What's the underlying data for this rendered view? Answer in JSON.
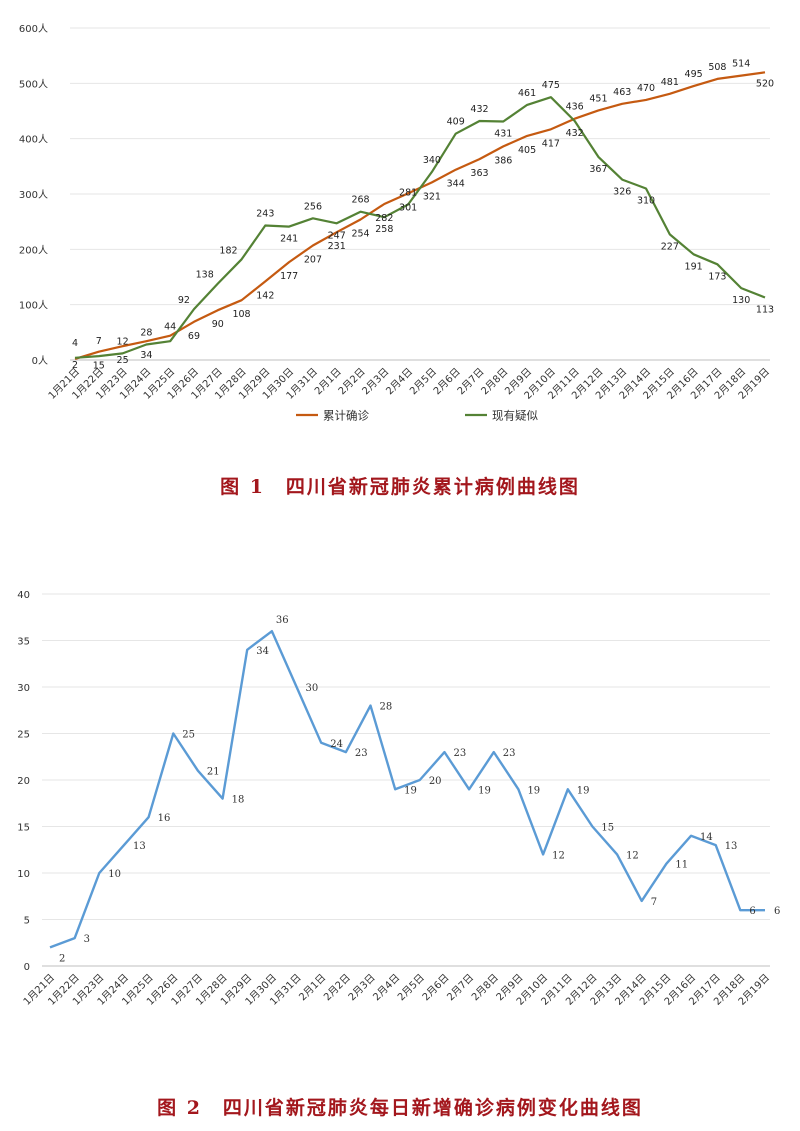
{
  "captions": {
    "fig1": "图 1　四川省新冠肺炎累计病例曲线图",
    "fig2": "图 2　四川省新冠肺炎每日新增确诊病例变化曲线图"
  },
  "chart_data": [
    {
      "type": "line",
      "categories": [
        "1月21日",
        "1月22日",
        "1月23日",
        "1月24日",
        "1月25日",
        "1月26日",
        "1月27日",
        "1月28日",
        "1月29日",
        "1月30日",
        "1月31日",
        "2月1日",
        "2月2日",
        "2月3日",
        "2月4日",
        "2月5日",
        "2月6日",
        "2月7日",
        "2月8日",
        "2月9日",
        "2月10日",
        "2月11日",
        "2月12日",
        "2月13日",
        "2月14日",
        "2月15日",
        "2月16日",
        "2月17日",
        "2月18日",
        "2月19日"
      ],
      "y_ticks": [
        "0人",
        "100人",
        "200人",
        "300人",
        "400人",
        "500人",
        "600人"
      ],
      "ylim": [
        0,
        600
      ],
      "grid": true,
      "legend_position": "bottom",
      "series": [
        {
          "name": "累计确诊",
          "color": "#c55a11",
          "values": [
            2,
            15,
            25,
            34,
            44,
            69,
            90,
            108,
            142,
            177,
            207,
            231,
            254,
            282,
            301,
            321,
            344,
            363,
            386,
            405,
            417,
            436,
            451,
            463,
            470,
            481,
            495,
            508,
            514,
            520
          ],
          "labels": [
            "2",
            "15",
            "25",
            "34",
            "44",
            "69",
            "90",
            "108",
            "142",
            "177",
            "207",
            "231",
            "254",
            "282",
            "301",
            "321",
            "344",
            "363",
            "386",
            "405",
            "417",
            "436",
            "451",
            "463",
            "470",
            "481",
            "495",
            "508",
            "514",
            "520"
          ]
        },
        {
          "name": "现有疑似",
          "color": "#548235",
          "values": [
            4,
            7,
            12,
            28,
            34,
            92,
            138,
            182,
            243,
            241,
            256,
            247,
            268,
            258,
            281,
            340,
            409,
            432,
            431,
            461,
            475,
            432,
            367,
            326,
            310,
            227,
            191,
            173,
            130,
            113
          ],
          "labels": [
            "4",
            "7",
            "12",
            "28",
            "",
            "92",
            "138",
            "182",
            "243",
            "241",
            "256",
            "247",
            "268",
            "258",
            "281",
            "340",
            "409",
            "432",
            "431",
            "461",
            "475",
            "432",
            "367",
            "326",
            "310",
            "227",
            "191",
            "173",
            "130",
            "113"
          ]
        }
      ]
    },
    {
      "type": "line",
      "categories": [
        "1月21日",
        "1月22日",
        "1月23日",
        "1月24日",
        "1月25日",
        "1月26日",
        "1月27日",
        "1月28日",
        "1月29日",
        "1月30日",
        "1月31日",
        "2月1日",
        "2月2日",
        "2月3日",
        "2月4日",
        "2月5日",
        "2月6日",
        "2月7日",
        "2月8日",
        "2月9日",
        "2月10日",
        "2月11日",
        "2月12日",
        "2月13日",
        "2月14日",
        "2月15日",
        "2月16日",
        "2月17日",
        "2月18日",
        "2月19日"
      ],
      "y_ticks": [
        "0",
        "5",
        "10",
        "15",
        "20",
        "25",
        "30",
        "35",
        "40"
      ],
      "ylim": [
        0,
        40
      ],
      "grid": true,
      "series": [
        {
          "color": "#5b9bd5",
          "values": [
            2,
            3,
            10,
            13,
            16,
            25,
            21,
            18,
            34,
            36,
            30,
            24,
            23,
            28,
            19,
            20,
            23,
            19,
            23,
            19,
            12,
            19,
            15,
            12,
            7,
            11,
            14,
            13,
            6,
            6
          ],
          "labels": [
            "2",
            "3",
            "10",
            "13",
            "16",
            "25",
            "21",
            "18",
            "34",
            "36",
            "30",
            "24",
            "23",
            "28",
            "19",
            "20",
            "23",
            "19",
            "23",
            "19",
            "12",
            "19",
            "15",
            "12",
            "7",
            "11",
            "14",
            "13",
            "6",
            "6"
          ]
        }
      ]
    }
  ]
}
